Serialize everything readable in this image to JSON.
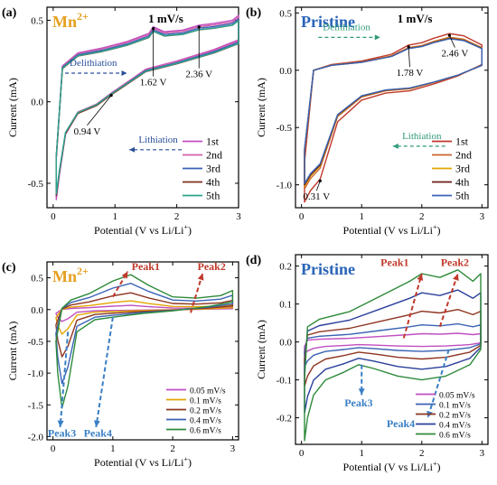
{
  "chart_data": [
    {
      "id": "a",
      "type": "line",
      "panel_label": "(a)",
      "title_text": "Mn",
      "title_superscript": "2+",
      "title_color": "#e6a020",
      "rate_label": "1 mV/s",
      "xlabel": "Potential (V vs Li/Li",
      "xlabel_superscript": "+",
      "xlabel_tail": ")",
      "ylabel": "Current (mA)",
      "xlim": [
        -0.1,
        3.0
      ],
      "ylim": [
        -0.65,
        0.58
      ],
      "xticks": [
        0,
        1,
        2,
        3
      ],
      "yticks": [
        -0.5,
        0.0,
        0.5
      ],
      "ytick_labels": [
        "-0.5",
        "0.0",
        "0.5"
      ],
      "legend_position": "bottom-right",
      "grid": false,
      "series": [
        {
          "name": "1st",
          "color": "#c04fc0",
          "scale": 1.0,
          "offset": 0
        },
        {
          "name": "2nd",
          "color": "#d25faa",
          "scale": 0.97,
          "offset": 0.005
        },
        {
          "name": "3rd",
          "color": "#3a63b5",
          "scale": 0.96,
          "offset": 0.0
        },
        {
          "name": "4th",
          "color": "#7e2f1e",
          "scale": 0.95,
          "offset": -0.005
        },
        {
          "name": "5th",
          "color": "#29a48c",
          "scale": 0.94,
          "offset": 0.0
        }
      ],
      "upper_branch": {
        "x": [
          0.05,
          0.15,
          0.4,
          0.8,
          1.2,
          1.55,
          1.62,
          1.8,
          2.1,
          2.36,
          2.6,
          2.9,
          3.0
        ],
        "y": [
          -0.35,
          0.22,
          0.3,
          0.33,
          0.37,
          0.42,
          0.46,
          0.43,
          0.44,
          0.47,
          0.48,
          0.5,
          0.53
        ]
      },
      "lower_branch": {
        "x": [
          3.0,
          2.6,
          2.0,
          1.5,
          1.2,
          0.94,
          0.7,
          0.4,
          0.2,
          0.1,
          0.05
        ],
        "y": [
          0.38,
          0.32,
          0.25,
          0.2,
          0.12,
          0.05,
          -0.02,
          -0.07,
          -0.2,
          -0.45,
          -0.6
        ]
      },
      "annotations": [
        {
          "text": "Delithiation",
          "color": "#2a4f9a",
          "x": 0.65,
          "y": 0.22,
          "arrow": "right"
        },
        {
          "text": "1.62 V",
          "color": "#000000",
          "x": 1.62,
          "y": 0.1,
          "point": [
            1.62,
            0.46
          ]
        },
        {
          "text": "2.36 V",
          "color": "#000000",
          "x": 2.36,
          "y": 0.15,
          "point": [
            2.36,
            0.47
          ]
        },
        {
          "text": "0.94 V",
          "color": "#000000",
          "x": 0.55,
          "y": -0.2,
          "point": [
            0.94,
            0.05
          ]
        },
        {
          "text": "Lithiation",
          "color": "#2a4f9a",
          "x": 1.7,
          "y": -0.25,
          "arrow": "left"
        }
      ]
    },
    {
      "id": "b",
      "type": "line",
      "panel_label": "(b)",
      "title_text": "Pristine",
      "title_color": "#2a64b8",
      "rate_label": "1 mV/s",
      "xlabel": "Potential (V vs Li/Li",
      "xlabel_superscript": "+",
      "xlabel_tail": ")",
      "ylabel": "Current (mA)",
      "xlim": [
        -0.1,
        3.1
      ],
      "ylim": [
        -1.2,
        0.55
      ],
      "xticks": [
        0,
        1,
        2,
        3
      ],
      "yticks": [
        -1.0,
        -0.5,
        0.0,
        0.5
      ],
      "ytick_labels": [
        "-1.0",
        "-0.5",
        "0.0",
        "0.5"
      ],
      "legend_position": "bottom-right",
      "grid": false,
      "series": [
        {
          "name": "1st",
          "color": "#c0392b",
          "scale": 1.0,
          "offset": 0
        },
        {
          "name": "2nd",
          "color": "#c8652e",
          "scale": 0.9,
          "offset": 0.0
        },
        {
          "name": "3rd",
          "color": "#e2a400",
          "scale": 0.88,
          "offset": 0.0
        },
        {
          "name": "4th",
          "color": "#6b1e16",
          "scale": 0.87,
          "offset": 0.0
        },
        {
          "name": "5th",
          "color": "#3a63b5",
          "scale": 0.86,
          "offset": 0.0
        }
      ],
      "upper_branch": {
        "x": [
          0.05,
          0.2,
          0.5,
          1.0,
          1.5,
          1.78,
          2.0,
          2.2,
          2.46,
          2.7,
          3.0
        ],
        "y": [
          -0.8,
          0.0,
          0.05,
          0.08,
          0.14,
          0.22,
          0.24,
          0.28,
          0.32,
          0.3,
          0.22
        ]
      },
      "lower_branch": {
        "x": [
          3.0,
          2.6,
          2.2,
          1.8,
          1.4,
          1.0,
          0.6,
          0.31,
          0.15,
          0.05
        ],
        "y": [
          0.05,
          -0.05,
          -0.12,
          -0.18,
          -0.2,
          -0.26,
          -0.45,
          -0.95,
          -1.05,
          -1.15
        ]
      },
      "annotations": [
        {
          "text": "Delithiation",
          "color": "#2e9a7a",
          "x": 0.75,
          "y": 0.35,
          "arrow": "right"
        },
        {
          "text": "1.78 V",
          "color": "#000000",
          "x": 1.8,
          "y": -0.05,
          "point": [
            1.78,
            0.22
          ]
        },
        {
          "text": "2.46 V",
          "color": "#000000",
          "x": 2.55,
          "y": 0.12,
          "point": [
            2.46,
            0.32
          ]
        },
        {
          "text": "Lithiation",
          "color": "#2e9a7a",
          "x": 2.0,
          "y": -0.6,
          "arrow": "left"
        },
        {
          "text": "0.31 V",
          "color": "#000000",
          "x": 0.25,
          "y": -1.13,
          "point": [
            0.31,
            -0.95
          ]
        }
      ]
    },
    {
      "id": "c",
      "type": "line",
      "panel_label": "(c)",
      "title_text": "Mn",
      "title_superscript": "2+",
      "title_color": "#e6a020",
      "xlabel": "Potential (V vs Li/Li",
      "xlabel_superscript": "+",
      "xlabel_tail": ")",
      "ylabel": "Current (mA)",
      "xlim": [
        -0.1,
        3.1
      ],
      "ylim": [
        -2.05,
        0.75
      ],
      "xticks": [
        0,
        1,
        2,
        3
      ],
      "yticks": [
        -2.0,
        -1.5,
        -1.0,
        -0.5,
        0.0,
        0.5
      ],
      "ytick_labels": [
        "-2.0",
        "-1.5",
        "-1.0",
        "-0.5",
        "0.0",
        "0.5"
      ],
      "legend_position": "bottom-right",
      "grid": false,
      "series": [
        {
          "name": "0.05 mV/s",
          "color": "#c04fc0",
          "scale": 0.12
        },
        {
          "name": "0.1 mV/s",
          "color": "#e2a400",
          "scale": 0.25
        },
        {
          "name": "0.2 mV/s",
          "color": "#8e3520",
          "scale": 0.48
        },
        {
          "name": "0.4 mV/s",
          "color": "#3a63b5",
          "scale": 0.75
        },
        {
          "name": "0.6 mV/s",
          "color": "#2e8b3a",
          "scale": 1.0
        }
      ],
      "upper_branch": {
        "x": [
          0.05,
          0.15,
          0.3,
          0.6,
          1.0,
          1.3,
          1.6,
          2.0,
          2.4,
          2.8,
          3.0
        ],
        "y": [
          -0.5,
          0.02,
          0.15,
          0.25,
          0.45,
          0.55,
          0.38,
          0.2,
          0.18,
          0.22,
          0.3
        ]
      },
      "lower_branch": {
        "x": [
          3.0,
          2.6,
          2.0,
          1.5,
          1.0,
          0.7,
          0.4,
          0.25,
          0.15,
          0.08,
          0.05
        ],
        "y": [
          0.12,
          0.05,
          -0.02,
          -0.06,
          -0.12,
          -0.16,
          -0.35,
          -1.2,
          -1.55,
          -1.0,
          -0.5
        ]
      },
      "annotations": [
        {
          "text": "Peak1",
          "color": "#c0392b",
          "x": 1.55,
          "y": 0.62
        },
        {
          "text": "Peak2",
          "color": "#c0392b",
          "x": 2.65,
          "y": 0.62
        },
        {
          "text": "Peak3",
          "color": "#3a7fc4",
          "x": 0.15,
          "y": -2.0
        },
        {
          "text": "Peak4",
          "color": "#3a7fc4",
          "x": 0.75,
          "y": -2.0
        }
      ],
      "peak_arrows": [
        {
          "color": "#c0392b",
          "from": [
            1.0,
            0.2
          ],
          "to": [
            1.25,
            0.6
          ]
        },
        {
          "color": "#c0392b",
          "from": [
            2.3,
            -0.05
          ],
          "to": [
            2.5,
            0.57
          ]
        },
        {
          "color": "#3a7fc4",
          "from": [
            0.25,
            -0.35
          ],
          "to": [
            0.12,
            -1.85
          ]
        },
        {
          "color": "#3a7fc4",
          "from": [
            1.0,
            -0.12
          ],
          "to": [
            0.72,
            -1.85
          ]
        }
      ]
    },
    {
      "id": "d",
      "type": "line",
      "panel_label": "(d)",
      "title_text": "Pristine",
      "title_color": "#2a64b8",
      "xlabel": "Potential (V vs Li/Li",
      "xlabel_superscript": "+",
      "xlabel_tail": ")",
      "ylabel": "Current (mA)",
      "xlim": [
        -0.1,
        3.1
      ],
      "ylim": [
        -0.27,
        0.23
      ],
      "xticks": [
        0,
        1,
        2,
        3
      ],
      "yticks": [
        -0.2,
        -0.1,
        0.0,
        0.1,
        0.2
      ],
      "ytick_labels": [
        "-0.2",
        "-0.1",
        "0.0",
        "0.1",
        "0.2"
      ],
      "legend_position": "bottom-right",
      "grid": false,
      "series": [
        {
          "name": "0.05 mV/s",
          "color": "#c04fc0",
          "scale": 0.12
        },
        {
          "name": "0.1 mV/s",
          "color": "#3a63b5",
          "scale": 0.25
        },
        {
          "name": "0.2 mV/s",
          "color": "#8e3520",
          "scale": 0.45
        },
        {
          "name": "0.4 mV/s",
          "color": "#2a3f9a",
          "scale": 0.72
        },
        {
          "name": "0.6 mV/s",
          "color": "#2e8b3a",
          "scale": 1.0
        }
      ],
      "upper_branch": {
        "x": [
          0.05,
          0.1,
          0.3,
          0.8,
          1.3,
          1.8,
          2.0,
          2.3,
          2.6,
          2.85,
          2.98
        ],
        "y": [
          -0.1,
          0.04,
          0.06,
          0.08,
          0.12,
          0.16,
          0.18,
          0.17,
          0.19,
          0.16,
          0.18
        ]
      },
      "lower_branch": {
        "x": [
          2.98,
          2.8,
          2.4,
          2.0,
          1.6,
          1.2,
          0.95,
          0.7,
          0.4,
          0.2,
          0.1,
          0.05
        ],
        "y": [
          -0.02,
          -0.06,
          -0.09,
          -0.1,
          -0.09,
          -0.07,
          -0.06,
          -0.08,
          -0.1,
          -0.14,
          -0.2,
          -0.26
        ]
      },
      "annotations": [
        {
          "text": "Peak1",
          "color": "#c0392b",
          "x": 1.55,
          "y": 0.2
        },
        {
          "text": "Peak2",
          "color": "#c0392b",
          "x": 2.55,
          "y": 0.2
        },
        {
          "text": "Peak3",
          "color": "#3a7fc4",
          "x": 0.95,
          "y": -0.17
        },
        {
          "text": "Peak4",
          "color": "#3a7fc4",
          "x": 1.65,
          "y": -0.225
        }
      ],
      "peak_arrows": [
        {
          "color": "#c0392b",
          "from": [
            1.7,
            0.01
          ],
          "to": [
            2.0,
            0.18
          ]
        },
        {
          "color": "#c0392b",
          "from": [
            2.3,
            0.04
          ],
          "to": [
            2.6,
            0.18
          ]
        },
        {
          "color": "#3a7fc4",
          "from": [
            1.0,
            -0.06
          ],
          "to": [
            1.0,
            -0.14
          ]
        },
        {
          "color": "#3a7fc4",
          "from": [
            2.45,
            -0.02
          ],
          "to": [
            2.1,
            -0.2
          ]
        }
      ]
    }
  ]
}
